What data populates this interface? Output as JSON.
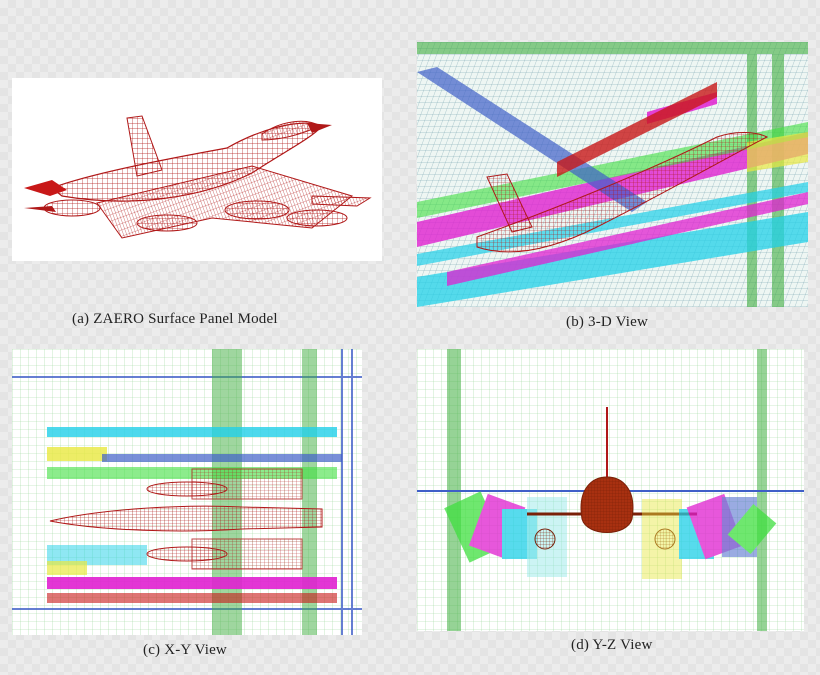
{
  "figure": {
    "panels": [
      {
        "id": "a",
        "caption": "(a) ZAERO  Surface Panel Model"
      },
      {
        "id": "b",
        "caption": "(b) 3-D View"
      },
      {
        "id": "c",
        "caption": "(c) X-Y  View"
      },
      {
        "id": "d",
        "caption": "(d) Y-Z  View"
      }
    ]
  },
  "colors": {
    "aircraft": "#b01818",
    "grid_green": "#3fae3f",
    "grid_blue": "#3f5fc8",
    "magenta": "#e020d0",
    "cyan": "#20d0e8",
    "yellow": "#e8e840",
    "lime": "#40e040",
    "pod": "#a83010"
  }
}
